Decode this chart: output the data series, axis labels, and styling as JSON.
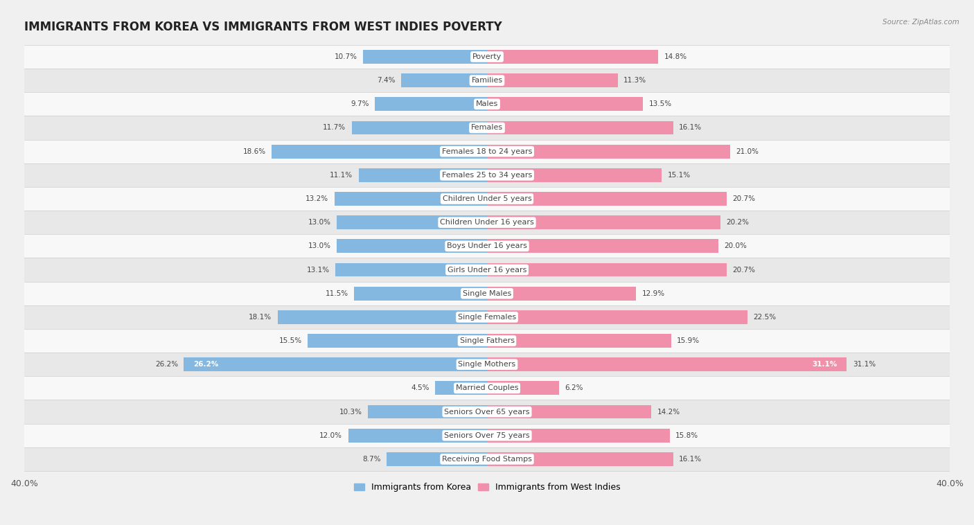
{
  "title": "IMMIGRANTS FROM KOREA VS IMMIGRANTS FROM WEST INDIES POVERTY",
  "source": "Source: ZipAtlas.com",
  "categories": [
    "Poverty",
    "Families",
    "Males",
    "Females",
    "Females 18 to 24 years",
    "Females 25 to 34 years",
    "Children Under 5 years",
    "Children Under 16 years",
    "Boys Under 16 years",
    "Girls Under 16 years",
    "Single Males",
    "Single Females",
    "Single Fathers",
    "Single Mothers",
    "Married Couples",
    "Seniors Over 65 years",
    "Seniors Over 75 years",
    "Receiving Food Stamps"
  ],
  "korea_values": [
    10.7,
    7.4,
    9.7,
    11.7,
    18.6,
    11.1,
    13.2,
    13.0,
    13.0,
    13.1,
    11.5,
    18.1,
    15.5,
    26.2,
    4.5,
    10.3,
    12.0,
    8.7
  ],
  "westindies_values": [
    14.8,
    11.3,
    13.5,
    16.1,
    21.0,
    15.1,
    20.7,
    20.2,
    20.0,
    20.7,
    12.9,
    22.5,
    15.9,
    31.1,
    6.2,
    14.2,
    15.8,
    16.1
  ],
  "korea_color": "#85b8e0",
  "westindies_color": "#f090aa",
  "korea_label": "Immigrants from Korea",
  "westindies_label": "Immigrants from West Indies",
  "xlim": 40.0,
  "bar_height": 0.58,
  "bg_color": "#f0f0f0",
  "row_color_even": "#e8e8e8",
  "row_color_odd": "#f8f8f8",
  "title_fontsize": 12,
  "label_fontsize": 8.0,
  "value_fontsize": 7.5
}
